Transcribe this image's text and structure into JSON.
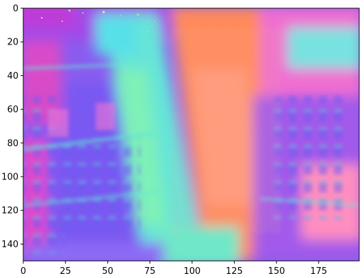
{
  "figure": {
    "image_description_free": true,
    "x_ticks": [
      "0",
      "25",
      "50",
      "75",
      "100",
      "125",
      "150",
      "175"
    ],
    "x_tick_values": [
      0,
      25,
      50,
      75,
      100,
      125,
      150,
      175
    ],
    "y_ticks": [
      "0",
      "20",
      "40",
      "60",
      "80",
      "100",
      "120",
      "140"
    ],
    "y_tick_values": [
      0,
      20,
      40,
      60,
      80,
      100,
      120,
      140
    ],
    "x_range": [
      0,
      199
    ],
    "y_range": [
      0,
      150
    ],
    "colors": {
      "magenta": "#e040c8",
      "violet": "#8a5cf0",
      "blue": "#5a6ef5",
      "cyan": "#5fe8d8",
      "green": "#6df0a0",
      "orange": "#ff8a5c",
      "salmon": "#ff9a8a",
      "pink": "#f070c0"
    }
  }
}
